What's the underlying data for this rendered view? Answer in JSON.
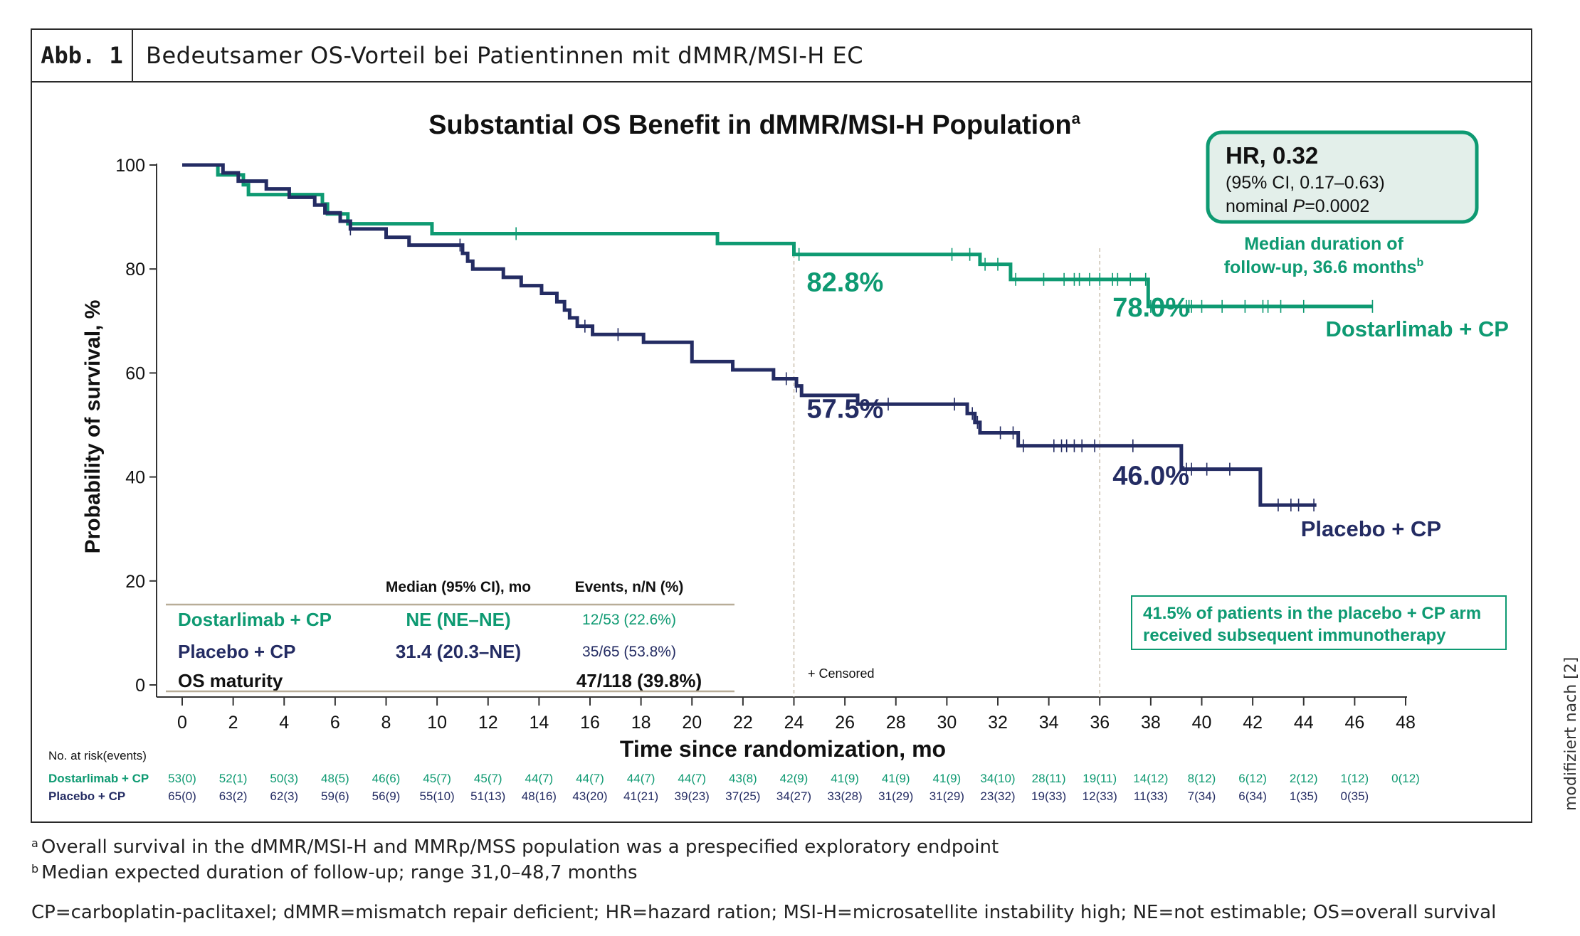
{
  "figure": {
    "label": "Abb. 1",
    "title": "Bedeutsamer OS-Vorteil bei Patientinnen mit dMMR/MSI-H EC",
    "source_note": "modifiziert nach [2]"
  },
  "colors": {
    "dostarlimab": "#0e9a72",
    "placebo": "#242c63",
    "text": "#111111",
    "rule": "#b8ad98"
  },
  "hr_box": {
    "hr": "HR, 0.32",
    "ci": "(95% CI, 0.17–0.63)",
    "p_prefix": "nominal ",
    "p_italic": "P",
    "p_value": "=0.0002"
  },
  "followup": {
    "line1": "Median duration of",
    "line2": "follow-up, 36.6 months",
    "sup": "b"
  },
  "subsequent_box": {
    "line1": "41.5% of patients in the placebo + CP arm",
    "line2": "received subsequent immunotherapy"
  },
  "summary_table": {
    "headers": [
      "Median (95% CI), mo",
      "Events, n/N (%)"
    ],
    "rows": [
      {
        "arm": "Dostarlimab  + CP",
        "median": "NE (NE–NE)",
        "events": "12/53 (22.6%)"
      },
      {
        "arm": "Placebo + CP",
        "median": "31.4 (20.3–NE)",
        "events": "35/65 (53.8%)"
      },
      {
        "arm": "OS maturity",
        "median": "",
        "events": "47/118 (39.8%)"
      }
    ]
  },
  "censored_legend": "+ Censored",
  "risk_table": {
    "title": "No. at risk(events)",
    "rows": [
      {
        "arm": "Dostarlimab + CP",
        "values": [
          "53(0)",
          "52(1)",
          "50(3)",
          "48(5)",
          "46(6)",
          "45(7)",
          "45(7)",
          "44(7)",
          "44(7)",
          "44(7)",
          "44(7)",
          "43(8)",
          "42(9)",
          "41(9)",
          "41(9)",
          "41(9)",
          "34(10)",
          "28(11)",
          "19(11)",
          "14(12)",
          "8(12)",
          "6(12)",
          "2(12)",
          "1(12)",
          "0(12)"
        ]
      },
      {
        "arm": "Placebo + CP",
        "values": [
          "65(0)",
          "63(2)",
          "62(3)",
          "59(6)",
          "56(9)",
          "55(10)",
          "51(13)",
          "48(16)",
          "43(20)",
          "41(21)",
          "39(23)",
          "37(25)",
          "34(27)",
          "33(28)",
          "31(29)",
          "31(29)",
          "23(32)",
          "19(33)",
          "12(33)",
          "11(33)",
          "7(34)",
          "6(34)",
          "1(35)",
          "0(35)"
        ]
      }
    ]
  },
  "footnotes": {
    "a_mark": "a",
    "a": "Overall survival in the dMMR/MSI-H and MMRp/MSS population was a prespecified exploratory endpoint",
    "b_mark": "b",
    "b": "Median expected duration of follow-up; range 31,0–48,7 months",
    "abbrev": "CP=carboplatin-paclitaxel; dMMR=mismatch repair deficient; HR=hazard ration; MSI-H=microsatellite instability high; NE=not estimable; OS=overall survival"
  },
  "chart_data": {
    "type": "line",
    "subtype": "kaplan-meier step",
    "title": "Substantial OS Benefit in dMMR/MSI-H Population",
    "title_sup": "a",
    "xlabel": "Time since randomization, mo",
    "ylabel": "Probability of survival, %",
    "xlim": [
      0,
      48
    ],
    "ylim": [
      0,
      100
    ],
    "xticks": [
      0,
      2,
      4,
      6,
      8,
      10,
      12,
      14,
      16,
      18,
      20,
      22,
      24,
      26,
      28,
      30,
      32,
      34,
      36,
      38,
      40,
      42,
      44,
      46,
      48
    ],
    "yticks": [
      0,
      20,
      40,
      60,
      80,
      100
    ],
    "grid": false,
    "reference_lines_x": [
      24,
      36
    ],
    "series": [
      {
        "name": "Dostarlimab + CP",
        "color": "#0e9a72",
        "steps": [
          [
            0,
            100
          ],
          [
            1.4,
            98.1
          ],
          [
            2.4,
            96.2
          ],
          [
            2.6,
            94.3
          ],
          [
            5.5,
            92.5
          ],
          [
            5.7,
            90.6
          ],
          [
            6.5,
            88.7
          ],
          [
            9.8,
            86.8
          ],
          [
            21.0,
            84.9
          ],
          [
            24.0,
            82.8
          ],
          [
            31.3,
            80.9
          ],
          [
            32.5,
            78.0
          ],
          [
            37.9,
            72.8
          ]
        ],
        "end": 46.7,
        "censored": [
          13.1,
          24.2,
          30.2,
          30.9,
          31.5,
          32.0,
          32.7,
          33.8,
          34.6,
          35.0,
          35.2,
          35.6,
          36.0,
          36.5,
          36.7,
          37.2,
          37.8,
          38.0,
          39.4,
          39.5,
          39.6,
          40.0,
          40.8,
          41.7,
          42.4,
          42.6,
          43.1,
          44.0,
          46.7
        ],
        "labels": [
          {
            "x": 24,
            "text": "82.8%"
          },
          {
            "x": 36,
            "text": "78.0%"
          }
        ],
        "end_label": "Dostarlimab + CP"
      },
      {
        "name": "Placebo + CP",
        "color": "#242c63",
        "steps": [
          [
            0,
            100
          ],
          [
            1.6,
            98.5
          ],
          [
            2.2,
            96.9
          ],
          [
            3.3,
            95.4
          ],
          [
            4.2,
            93.8
          ],
          [
            5.2,
            92.3
          ],
          [
            5.6,
            90.8
          ],
          [
            6.2,
            89.2
          ],
          [
            6.6,
            87.7
          ],
          [
            8.0,
            86.1
          ],
          [
            8.9,
            84.6
          ],
          [
            11.0,
            83.0
          ],
          [
            11.2,
            81.5
          ],
          [
            11.4,
            80.0
          ],
          [
            12.6,
            78.4
          ],
          [
            13.3,
            76.8
          ],
          [
            14.1,
            75.3
          ],
          [
            14.7,
            73.7
          ],
          [
            15.0,
            72.1
          ],
          [
            15.2,
            70.6
          ],
          [
            15.5,
            69.0
          ],
          [
            16.1,
            67.4
          ],
          [
            18.1,
            65.9
          ],
          [
            20.0,
            62.2
          ],
          [
            21.6,
            60.6
          ],
          [
            23.2,
            58.9
          ],
          [
            24.1,
            57.5
          ],
          [
            24.3,
            55.7
          ],
          [
            26.5,
            54.0
          ],
          [
            30.8,
            52.2
          ],
          [
            31.1,
            50.5
          ],
          [
            31.3,
            48.5
          ],
          [
            32.8,
            46.0
          ],
          [
            39.2,
            41.5
          ],
          [
            42.3,
            34.6
          ]
        ],
        "end": 44.5,
        "censored": [
          6.6,
          10.9,
          15.8,
          17.1,
          23.7,
          24.1,
          27.7,
          30.3,
          31.0,
          31.2,
          32.1,
          32.6,
          33.0,
          34.2,
          34.5,
          34.7,
          35.0,
          35.3,
          35.8,
          37.3,
          39.4,
          39.6,
          40.2,
          41.1,
          43.0,
          43.5,
          43.8,
          44.4
        ],
        "labels": [
          {
            "x": 24,
            "text": "57.5%"
          },
          {
            "x": 36,
            "text": "46.0%"
          }
        ],
        "end_label": "Placebo + CP"
      }
    ]
  }
}
